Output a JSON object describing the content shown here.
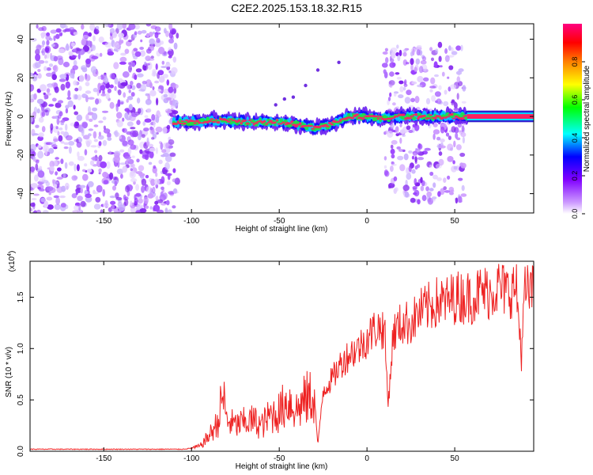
{
  "title": "C2E2.2025.153.18.32.R15",
  "chart_data": [
    {
      "type": "heatmap",
      "xlabel": "Height of straight line (km)",
      "ylabel": "Frequency (Hz)",
      "xlim": [
        -192,
        95
      ],
      "ylim": [
        -50,
        48
      ],
      "xticks": [
        -150,
        -100,
        -50,
        0,
        50
      ],
      "yticks": [
        -40,
        -20,
        0,
        20,
        40
      ],
      "colorbar": {
        "label": "Normalized spectral amplitude",
        "range": [
          0,
          1
        ],
        "ticks": [
          "0.0",
          "0.2",
          "0.4",
          "0.6",
          "0.8"
        ],
        "colors": [
          "#ffffff",
          "#cc99ff",
          "#8000ff",
          "#0000ff",
          "#00ffff",
          "#00ff00",
          "#ffff00",
          "#ff8000",
          "#ff0000",
          "#ff0080"
        ]
      },
      "centerline": [
        {
          "x": -110,
          "y": -3
        },
        {
          "x": -100,
          "y": -3
        },
        {
          "x": -90,
          "y": -2
        },
        {
          "x": -80,
          "y": -2
        },
        {
          "x": -70,
          "y": -3
        },
        {
          "x": -60,
          "y": -3
        },
        {
          "x": -50,
          "y": -3
        },
        {
          "x": -40,
          "y": -4
        },
        {
          "x": -30,
          "y": -6
        },
        {
          "x": -25,
          "y": -5
        },
        {
          "x": -20,
          "y": -4
        },
        {
          "x": -15,
          "y": -2
        },
        {
          "x": -10,
          "y": 0
        },
        {
          "x": -5,
          "y": 0
        },
        {
          "x": 0,
          "y": 0
        },
        {
          "x": 5,
          "y": -1
        },
        {
          "x": 10,
          "y": -1
        },
        {
          "x": 20,
          "y": 0
        },
        {
          "x": 30,
          "y": 0
        },
        {
          "x": 40,
          "y": 0
        },
        {
          "x": 50,
          "y": 0
        },
        {
          "x": 57,
          "y": 0
        },
        {
          "x": 95,
          "y": 0
        }
      ]
    },
    {
      "type": "line",
      "xlabel": "Height of straight line (km)",
      "ylabel": "SNR (10 * v/v)",
      "multiplier": "(x10",
      "multiplier_exp": "4",
      "multiplier_close": ")",
      "xlim": [
        -192,
        95
      ],
      "ylim": [
        0,
        1.85
      ],
      "xticks": [
        -150,
        -100,
        -50,
        0,
        50
      ],
      "yticks": [
        "0.0",
        "0.5",
        "1.0",
        "1.5"
      ],
      "series": [
        {
          "color": "#ee2222",
          "x": [
            -192,
            -180,
            -160,
            -140,
            -120,
            -105,
            -100,
            -95,
            -90,
            -85,
            -82,
            -80,
            -75,
            -70,
            -65,
            -60,
            -55,
            -50,
            -45,
            -40,
            -35,
            -30,
            -28,
            -25,
            -20,
            -15,
            -10,
            -5,
            0,
            5,
            10,
            12,
            15,
            20,
            25,
            30,
            35,
            40,
            45,
            50,
            55,
            60,
            65,
            70,
            75,
            80,
            85,
            88,
            90,
            95
          ],
          "y": [
            0.02,
            0.02,
            0.02,
            0.02,
            0.02,
            0.02,
            0.03,
            0.05,
            0.15,
            0.28,
            0.56,
            0.3,
            0.25,
            0.28,
            0.3,
            0.25,
            0.35,
            0.38,
            0.5,
            0.4,
            0.5,
            0.55,
            0.05,
            0.6,
            0.7,
            0.85,
            0.95,
            1.0,
            1.1,
            1.2,
            1.2,
            0.45,
            1.15,
            1.25,
            1.25,
            1.35,
            1.4,
            1.45,
            1.45,
            1.5,
            1.5,
            1.5,
            1.55,
            1.55,
            1.6,
            1.55,
            1.6,
            0.95,
            1.55,
            1.55
          ]
        }
      ]
    }
  ]
}
